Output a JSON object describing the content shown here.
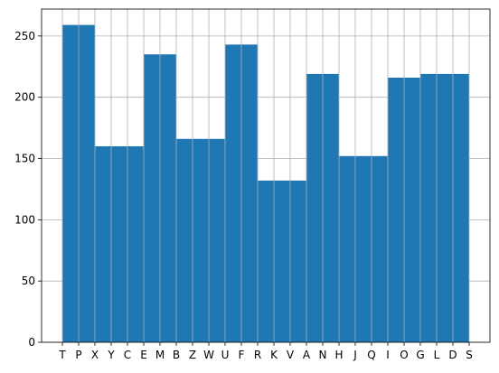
{
  "chart_data": {
    "type": "bar",
    "title": "",
    "xlabel": "",
    "ylabel": "",
    "grid": true,
    "bar_color": "#1f77b4",
    "grid_color": "#b0b0b0",
    "ylim": [
      0,
      272
    ],
    "yticks": [
      0,
      50,
      100,
      150,
      200,
      250
    ],
    "categories": [
      "T",
      "P",
      "X",
      "Y",
      "C",
      "E",
      "M",
      "B",
      "Z",
      "W",
      "U",
      "F",
      "R",
      "K",
      "V",
      "A",
      "N",
      "H",
      "J",
      "Q",
      "I",
      "O",
      "G",
      "L",
      "D",
      "S"
    ],
    "bins": [
      {
        "from": 0,
        "to": 2,
        "value": 259
      },
      {
        "from": 2,
        "to": 5,
        "value": 160
      },
      {
        "from": 5,
        "to": 7,
        "value": 235
      },
      {
        "from": 7,
        "to": 10,
        "value": 166
      },
      {
        "from": 10,
        "to": 12,
        "value": 243
      },
      {
        "from": 12,
        "to": 15,
        "value": 132
      },
      {
        "from": 15,
        "to": 17,
        "value": 219
      },
      {
        "from": 17,
        "to": 20,
        "value": 152
      },
      {
        "from": 20,
        "to": 22,
        "value": 216
      },
      {
        "from": 22,
        "to": 25,
        "value": 219
      }
    ]
  }
}
